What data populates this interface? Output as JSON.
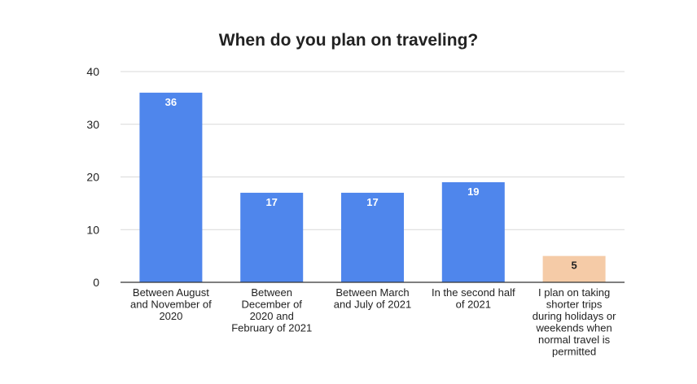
{
  "chart_data": {
    "type": "bar",
    "title": "When do you plan on traveling?",
    "xlabel": "",
    "ylabel": "",
    "ylim": [
      0,
      40
    ],
    "yticks": [
      0,
      10,
      20,
      30,
      40
    ],
    "grid": true,
    "legend": "none",
    "categories": [
      [
        "Between August",
        "and November of",
        "2020"
      ],
      [
        "Between",
        "December of",
        "2020 and",
        "February of 2021"
      ],
      [
        "Between March",
        "and July of 2021"
      ],
      [
        "In the second half",
        "of 2021"
      ],
      [
        "I plan on taking",
        "shorter trips",
        "during holidays or",
        "weekends when",
        "normal travel is",
        "permitted"
      ]
    ],
    "values": [
      36,
      17,
      17,
      19,
      5
    ],
    "data_labels": [
      "36",
      "17",
      "17",
      "19",
      "5"
    ],
    "bar_colors": [
      "#4f86ec",
      "#4f86ec",
      "#4f86ec",
      "#4f86ec",
      "#f5cba7"
    ],
    "label_colors": [
      "#ffffff",
      "#ffffff",
      "#ffffff",
      "#ffffff",
      "#222222"
    ]
  },
  "colors": {
    "gridline": "#d9d9d9",
    "axis": "#333333",
    "text": "#222222"
  }
}
